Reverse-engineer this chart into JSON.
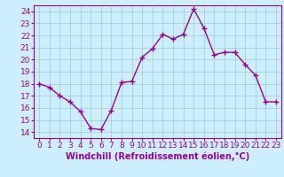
{
  "x": [
    0,
    1,
    2,
    3,
    4,
    5,
    6,
    7,
    8,
    9,
    10,
    11,
    12,
    13,
    14,
    15,
    16,
    17,
    18,
    19,
    20,
    21,
    22,
    23
  ],
  "y": [
    18.0,
    17.7,
    17.0,
    16.5,
    15.7,
    14.3,
    14.2,
    15.8,
    18.1,
    18.2,
    20.2,
    20.9,
    22.1,
    21.7,
    22.1,
    24.2,
    22.6,
    20.4,
    20.6,
    20.6,
    19.6,
    18.7,
    16.5,
    16.5
  ],
  "line_color": "#990099",
  "marker": "+",
  "marker_size": 4,
  "linewidth": 1.0,
  "xlabel": "Windchill (Refroidissement éolien,°C)",
  "xlim": [
    -0.5,
    23.5
  ],
  "ylim": [
    13.5,
    24.5
  ],
  "yticks": [
    14,
    15,
    16,
    17,
    18,
    19,
    20,
    21,
    22,
    23,
    24
  ],
  "xticks": [
    0,
    1,
    2,
    3,
    4,
    5,
    6,
    7,
    8,
    9,
    10,
    11,
    12,
    13,
    14,
    15,
    16,
    17,
    18,
    19,
    20,
    21,
    22,
    23
  ],
  "bg_color": "#cceeff",
  "grid_color": "#99cccc",
  "font_color": "#990099",
  "font_size": 6.5,
  "xlabel_fontsize": 7.0
}
